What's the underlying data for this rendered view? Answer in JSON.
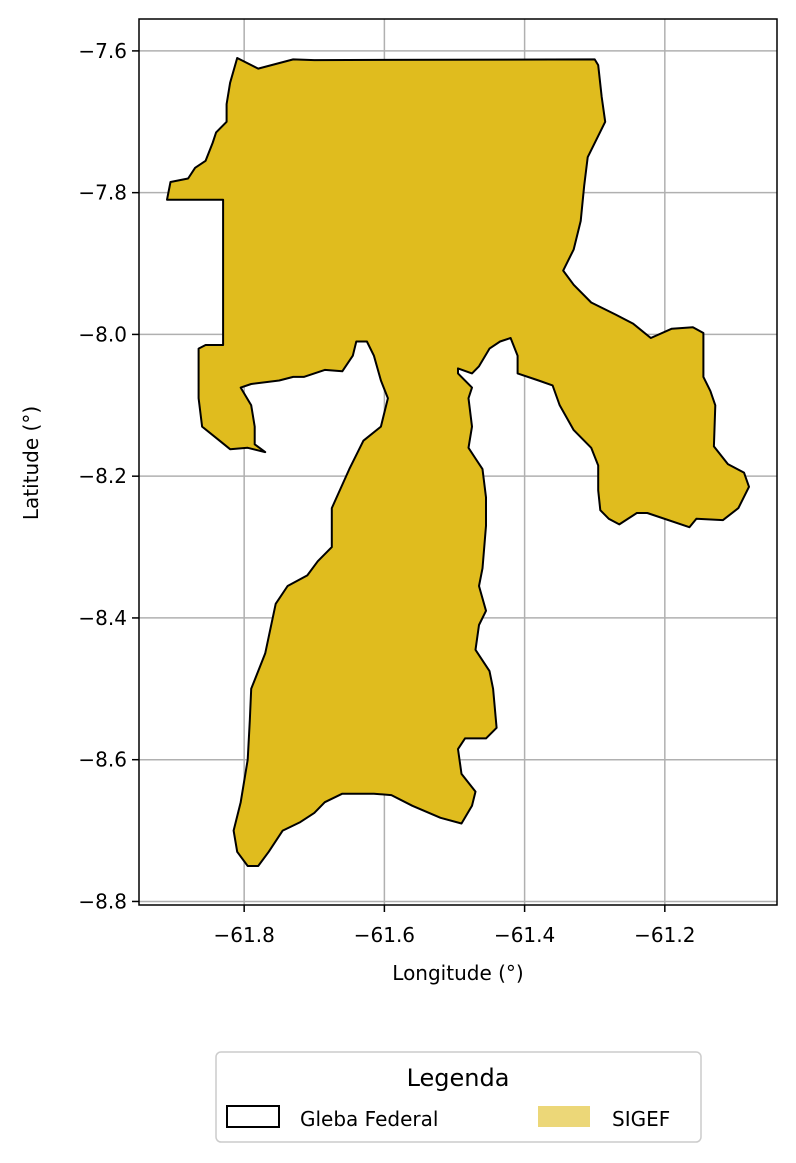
{
  "chart_data": {
    "type": "map",
    "xlabel": "Longitude (°)",
    "ylabel": "Latitude (°)",
    "xlim": [
      -61.95,
      -61.04
    ],
    "ylim": [
      -8.805,
      -7.555
    ],
    "x_ticks": [
      -61.8,
      -61.6,
      -61.4,
      -61.2
    ],
    "x_tick_labels": [
      "−61.8",
      "−61.6",
      "−61.4",
      "−61.2"
    ],
    "y_ticks": [
      -7.6,
      -7.8,
      -8.0,
      -8.2,
      -8.4,
      -8.6,
      -8.8
    ],
    "y_tick_labels": [
      "−7.6",
      "−7.8",
      "−8.0",
      "−8.2",
      "−8.4",
      "−8.6",
      "−8.8"
    ],
    "grid": true,
    "layers": [
      {
        "name": "Gleba Federal",
        "style": "outline",
        "edge_color": "#000000"
      },
      {
        "name": "SIGEF",
        "style": "fill",
        "fill_color": "#e0bc1e"
      }
    ],
    "polygon": [
      [
        -61.81,
        -7.61
      ],
      [
        -61.78,
        -7.625
      ],
      [
        -61.73,
        -7.612
      ],
      [
        -61.7,
        -7.613
      ],
      [
        -61.3,
        -7.612
      ],
      [
        -61.295,
        -7.62
      ],
      [
        -61.29,
        -7.665
      ],
      [
        -61.285,
        -7.7
      ],
      [
        -61.31,
        -7.75
      ],
      [
        -61.315,
        -7.79
      ],
      [
        -61.32,
        -7.84
      ],
      [
        -61.33,
        -7.88
      ],
      [
        -61.345,
        -7.91
      ],
      [
        -61.33,
        -7.93
      ],
      [
        -61.305,
        -7.955
      ],
      [
        -61.27,
        -7.972
      ],
      [
        -61.245,
        -7.985
      ],
      [
        -61.22,
        -8.005
      ],
      [
        -61.19,
        -7.992
      ],
      [
        -61.16,
        -7.99
      ],
      [
        -61.145,
        -7.998
      ],
      [
        -61.145,
        -8.06
      ],
      [
        -61.135,
        -8.08
      ],
      [
        -61.128,
        -8.1
      ],
      [
        -61.13,
        -8.158
      ],
      [
        -61.11,
        -8.183
      ],
      [
        -61.087,
        -8.195
      ],
      [
        -61.08,
        -8.215
      ],
      [
        -61.095,
        -8.245
      ],
      [
        -61.117,
        -8.262
      ],
      [
        -61.155,
        -8.26
      ],
      [
        -61.165,
        -8.272
      ],
      [
        -61.225,
        -8.252
      ],
      [
        -61.24,
        -8.252
      ],
      [
        -61.265,
        -8.268
      ],
      [
        -61.28,
        -8.26
      ],
      [
        -61.292,
        -8.248
      ],
      [
        -61.295,
        -8.22
      ],
      [
        -61.295,
        -8.185
      ],
      [
        -61.305,
        -8.16
      ],
      [
        -61.33,
        -8.135
      ],
      [
        -61.35,
        -8.1
      ],
      [
        -61.36,
        -8.072
      ],
      [
        -61.38,
        -8.065
      ],
      [
        -61.41,
        -8.055
      ],
      [
        -61.41,
        -8.03
      ],
      [
        -61.42,
        -8.005
      ],
      [
        -61.435,
        -8.01
      ],
      [
        -61.45,
        -8.02
      ],
      [
        -61.465,
        -8.045
      ],
      [
        -61.475,
        -8.055
      ],
      [
        -61.495,
        -8.048
      ],
      [
        -61.495,
        -8.055
      ],
      [
        -61.475,
        -8.075
      ],
      [
        -61.48,
        -8.09
      ],
      [
        -61.475,
        -8.13
      ],
      [
        -61.48,
        -8.16
      ],
      [
        -61.47,
        -8.175
      ],
      [
        -61.46,
        -8.19
      ],
      [
        -61.455,
        -8.23
      ],
      [
        -61.455,
        -8.27
      ],
      [
        -61.46,
        -8.33
      ],
      [
        -61.465,
        -8.355
      ],
      [
        -61.455,
        -8.39
      ],
      [
        -61.465,
        -8.41
      ],
      [
        -61.47,
        -8.445
      ],
      [
        -61.45,
        -8.475
      ],
      [
        -61.445,
        -8.5
      ],
      [
        -61.44,
        -8.555
      ],
      [
        -61.455,
        -8.57
      ],
      [
        -61.485,
        -8.57
      ],
      [
        -61.495,
        -8.585
      ],
      [
        -61.49,
        -8.62
      ],
      [
        -61.47,
        -8.645
      ],
      [
        -61.475,
        -8.665
      ],
      [
        -61.49,
        -8.69
      ],
      [
        -61.52,
        -8.682
      ],
      [
        -61.56,
        -8.665
      ],
      [
        -61.59,
        -8.65
      ],
      [
        -61.615,
        -8.648
      ],
      [
        -61.66,
        -8.648
      ],
      [
        -61.685,
        -8.66
      ],
      [
        -61.7,
        -8.675
      ],
      [
        -61.72,
        -8.688
      ],
      [
        -61.745,
        -8.7
      ],
      [
        -61.765,
        -8.73
      ],
      [
        -61.78,
        -8.75
      ],
      [
        -61.795,
        -8.75
      ],
      [
        -61.81,
        -8.73
      ],
      [
        -61.815,
        -8.7
      ],
      [
        -61.805,
        -8.66
      ],
      [
        -61.795,
        -8.6
      ],
      [
        -61.792,
        -8.545
      ],
      [
        -61.79,
        -8.5
      ],
      [
        -61.77,
        -8.45
      ],
      [
        -61.755,
        -8.38
      ],
      [
        -61.738,
        -8.355
      ],
      [
        -61.71,
        -8.34
      ],
      [
        -61.695,
        -8.32
      ],
      [
        -61.675,
        -8.3
      ],
      [
        -61.675,
        -8.245
      ],
      [
        -61.65,
        -8.19
      ],
      [
        -61.63,
        -8.15
      ],
      [
        -61.605,
        -8.13
      ],
      [
        -61.595,
        -8.09
      ],
      [
        -61.605,
        -8.065
      ],
      [
        -61.615,
        -8.03
      ],
      [
        -61.625,
        -8.01
      ],
      [
        -61.64,
        -8.01
      ],
      [
        -61.645,
        -8.03
      ],
      [
        -61.66,
        -8.052
      ],
      [
        -61.685,
        -8.05
      ],
      [
        -61.715,
        -8.06
      ],
      [
        -61.73,
        -8.06
      ],
      [
        -61.75,
        -8.065
      ],
      [
        -61.79,
        -8.07
      ],
      [
        -61.805,
        -8.075
      ],
      [
        -61.79,
        -8.1
      ],
      [
        -61.785,
        -8.13
      ],
      [
        -61.785,
        -8.155
      ],
      [
        -61.77,
        -8.166
      ],
      [
        -61.795,
        -8.16
      ],
      [
        -61.82,
        -8.162
      ],
      [
        -61.835,
        -8.15
      ],
      [
        -61.86,
        -8.13
      ],
      [
        -61.865,
        -8.09
      ],
      [
        -61.865,
        -8.02
      ],
      [
        -61.855,
        -8.015
      ],
      [
        -61.83,
        -8.015
      ],
      [
        -61.83,
        -7.81
      ],
      [
        -61.91,
        -7.81
      ],
      [
        -61.905,
        -7.785
      ],
      [
        -61.88,
        -7.78
      ],
      [
        -61.87,
        -7.765
      ],
      [
        -61.855,
        -7.755
      ],
      [
        -61.845,
        -7.73
      ],
      [
        -61.84,
        -7.715
      ],
      [
        -61.825,
        -7.7
      ],
      [
        -61.825,
        -7.675
      ],
      [
        -61.82,
        -7.645
      ],
      [
        -61.81,
        -7.61
      ]
    ]
  },
  "legend": {
    "title": "Legenda",
    "items": [
      {
        "label": "Gleba Federal"
      },
      {
        "label": "SIGEF"
      }
    ]
  }
}
